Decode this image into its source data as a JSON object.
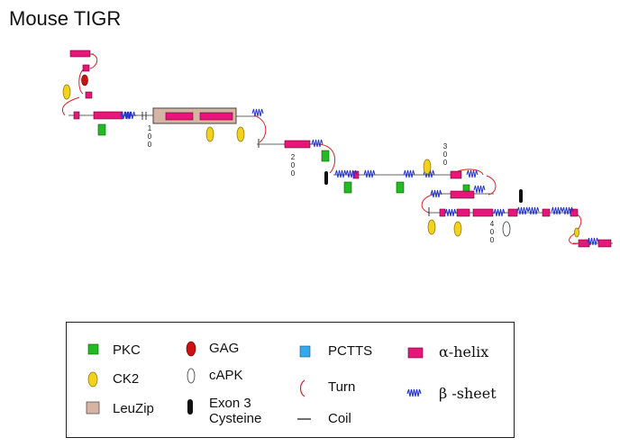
{
  "title": "Mouse TIGR",
  "colors": {
    "pkc": "#22bb22",
    "ck2": "#f2d21a",
    "leuzip": "#d6b4a4",
    "gag": "#cc1111",
    "capk": "#ffffff",
    "exon3": "#111111",
    "pctts": "#33aaee",
    "turn": "#dd2222",
    "coil": "#666666",
    "helix": "#e8157b",
    "sheet": "#2233cc"
  },
  "residue_ticks": [
    {
      "label": "100",
      "digits": [
        "1",
        "0",
        "0"
      ]
    },
    {
      "label": "200",
      "digits": [
        "2",
        "0",
        "0"
      ]
    },
    {
      "label": "300",
      "digits": [
        "3",
        "0",
        "0"
      ]
    },
    {
      "label": "400",
      "digits": [
        "4",
        "0",
        "0"
      ]
    }
  ],
  "legend": {
    "pkc": "PKC",
    "ck2": "CK2",
    "leuzip": "LeuZip",
    "gag": "GAG",
    "capk": "cAPK",
    "exon3_line1": "Exon 3",
    "exon3_line2": "Cysteine",
    "pctts": "PCTTS",
    "turn": "Turn",
    "coil": "Coil",
    "helix": "α-helix",
    "sheet": "β -sheet"
  }
}
